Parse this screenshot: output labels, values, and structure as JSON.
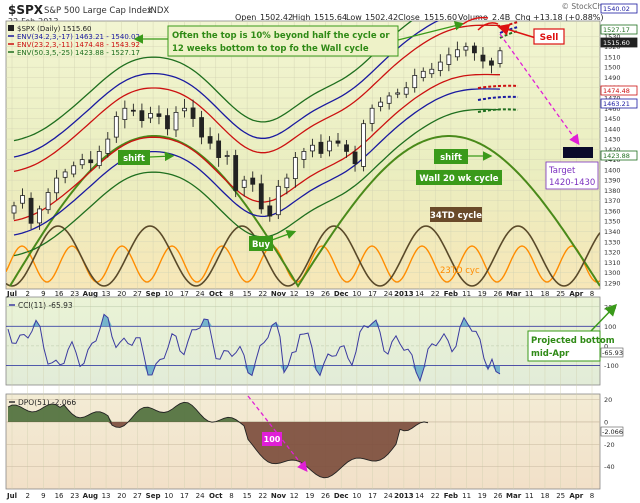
{
  "header": {
    "symbol": "$SPX",
    "name": "S&P 500 Large Cap Index",
    "exchange": "INDX",
    "date": "22-Feb-2013",
    "open_label": "Open",
    "open": "1502.42",
    "high_label": "High",
    "high": "1515.64",
    "low_label": "Low",
    "low": "1502.42",
    "close_label": "Close",
    "close": "1515.60",
    "volume_label": "Volume",
    "volume": "2.4B",
    "chg_label": "Chg",
    "chg": "+13.18 (+0.88%)",
    "watermark": "© StockCharts.com"
  },
  "legend": {
    "price": "$SPX (Daily) 1515.60",
    "env1": "ENV(34.2,3,-17) 1463.21 - 1540.02",
    "env2": "ENV(23.2,3,-11) 1474.48 - 1543.92",
    "env3": "ENV(50.3,5,-25) 1423.88 - 1527.17"
  },
  "annotations": {
    "top_note_line1": "Often the top is 10% beyond half the cycle or",
    "top_note_line2": "12 weeks bottom to top fo the Wall cycle",
    "sell": "Sell",
    "shift_left": "shift",
    "shift_right": "shift",
    "buy": "Buy",
    "wall_cycle": "Wall 20 wk cycle",
    "cycle_34td": "34TD cycle",
    "cycle_23td": "23TD cyc",
    "target_line1": "Target",
    "target_line2": "1420-1430",
    "projected_line1": "Projected bottom",
    "projected_line2": "mid-Apr",
    "dpo_100": "100"
  },
  "cci": {
    "label": "CCI(11) -65.93",
    "value_tag": "-65.93"
  },
  "dpo": {
    "label": "DPO(51) -2.066",
    "value_tag": "-2.066"
  },
  "price_tags": [
    "1540.02",
    "1527.17",
    "1515.60",
    "1474.48",
    "1463.21",
    "1423.88"
  ],
  "colors": {
    "env_blue": "#1a1aa0",
    "env_red": "#cc1111",
    "env_green": "#1f6f1f",
    "wall_cycle": "#4a8a1a",
    "cycle_34": "#5a4a2a",
    "cycle_23": "#ff8c00",
    "annot_green": "#3a9a1a",
    "sell_red": "#dd1111",
    "target_purple": "#7b2fbf"
  },
  "chart_data": [
    {
      "type": "line",
      "title": "$SPX (Daily)",
      "y_axis": {
        "ticks": [
          1290,
          1300,
          1310,
          1320,
          1330,
          1340,
          1350,
          1360,
          1370,
          1380,
          1390,
          1400,
          1410,
          1420,
          1430,
          1440,
          1450,
          1460,
          1470,
          1480,
          1490,
          1500,
          1510,
          1520,
          1530
        ],
        "ylim": [
          1284,
          1545
        ]
      },
      "x_axis": {
        "ticks": [
          "Jul",
          "2",
          "9",
          "16",
          "23",
          "Aug",
          "13",
          "20",
          "27",
          "Sep",
          "10",
          "17",
          "24",
          "Oct",
          "8",
          "15",
          "22",
          "Nov",
          "12",
          "19",
          "26",
          "Dec",
          "10",
          "17",
          "24",
          "2013",
          "14",
          "22",
          "Feb",
          "11",
          "19",
          "26",
          "Mar",
          "11",
          "18",
          "25",
          "Apr",
          "8"
        ]
      },
      "series": [
        {
          "kind": "candles",
          "close": [
            1365,
            1375,
            1348,
            1362,
            1378,
            1392,
            1398,
            1404,
            1410,
            1407,
            1418,
            1430,
            1452,
            1460,
            1458,
            1448,
            1455,
            1452,
            1440,
            1456,
            1460,
            1450,
            1432,
            1426,
            1412,
            1414,
            1380,
            1390,
            1386,
            1362,
            1355,
            1384,
            1392,
            1412,
            1418,
            1424,
            1416,
            1428,
            1426,
            1418,
            1406,
            1445,
            1460,
            1466,
            1472,
            1475,
            1480,
            1492,
            1496,
            1498,
            1505,
            1512,
            1517,
            1520,
            1514,
            1506,
            1502,
            1516
          ]
        },
        {
          "name": "ENV(34.2,3,-17)",
          "color": "blue"
        },
        {
          "name": "ENV(23.2,3,-11)",
          "color": "red"
        },
        {
          "name": "ENV(50.3,5,-25)",
          "color": "green"
        }
      ],
      "annotations": {
        "target_range": [
          1420,
          1430
        ]
      }
    },
    {
      "type": "line",
      "title": "CCI(11)",
      "ylim": [
        -200,
        250
      ],
      "y_ticks": [
        -100,
        0,
        100,
        200
      ],
      "last": -65.93
    },
    {
      "type": "area",
      "title": "DPO(51)",
      "ylim": [
        -60,
        25
      ],
      "y_ticks": [
        -40,
        -20,
        0,
        20
      ],
      "last": -2.066
    }
  ]
}
